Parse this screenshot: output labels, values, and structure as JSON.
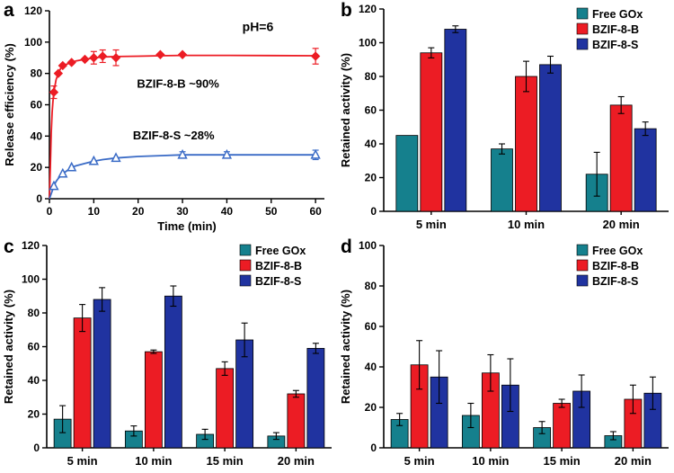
{
  "figure": {
    "background": "#ffffff"
  },
  "panels": [
    {
      "label": "a"
    },
    {
      "label": "b"
    },
    {
      "label": "c"
    },
    {
      "label": "d"
    }
  ],
  "colors": {
    "free_gox": "#15808d",
    "bzif8b": "#ec1c24",
    "bzif8s": "#2033a0",
    "axis": "#000000"
  },
  "chart_data": [
    {
      "panel": "a",
      "type": "line",
      "xlabel": "Time (min)",
      "ylabel": "Release efficiency (%)",
      "xlim": [
        0,
        62
      ],
      "ylim": [
        0,
        120
      ],
      "xticks": [
        0,
        10,
        20,
        30,
        40,
        50,
        60
      ],
      "yticks": [
        0,
        20,
        40,
        60,
        80,
        100,
        120
      ],
      "annotations": [
        {
          "text": "pH=6",
          "x": 47,
          "y": 107,
          "size": "large"
        },
        {
          "text": "BZIF-8-B  ~90%",
          "x": 29,
          "y": 71,
          "size": "normal"
        },
        {
          "text": "BZIF-8-S  ~28%",
          "x": 28,
          "y": 38,
          "size": "normal"
        }
      ],
      "series": [
        {
          "name": "BZIF-8-B",
          "color": "#ec1c24",
          "marker": "diamond",
          "curve": [
            [
              0,
              0
            ],
            [
              0.2,
              20
            ],
            [
              0.4,
              42
            ],
            [
              0.6,
              55
            ],
            [
              0.8,
              62
            ],
            [
              1,
              68
            ],
            [
              1.5,
              76
            ],
            [
              2,
              80
            ],
            [
              2.5,
              83
            ],
            [
              3,
              85
            ],
            [
              4,
              86
            ],
            [
              5,
              87
            ],
            [
              6,
              88
            ],
            [
              8,
              89
            ],
            [
              10,
              90
            ],
            [
              12,
              90.5
            ],
            [
              15,
              90.8
            ],
            [
              20,
              91
            ],
            [
              25,
              91.3
            ],
            [
              30,
              91.5
            ],
            [
              40,
              91.5
            ],
            [
              50,
              91.4
            ],
            [
              60,
              91.3
            ]
          ],
          "markers": [
            [
              1,
              68
            ],
            [
              2,
              80
            ],
            [
              3,
              85
            ],
            [
              5,
              87
            ],
            [
              8,
              89
            ],
            [
              10,
              90
            ],
            [
              12,
              91
            ],
            [
              15,
              90
            ],
            [
              25,
              92
            ],
            [
              30,
              92
            ],
            [
              60,
              91
            ]
          ],
          "errors": [
            4,
            0,
            0,
            0,
            0,
            4,
            4,
            5,
            0,
            0,
            5
          ]
        },
        {
          "name": "BZIF-8-S",
          "color": "#3a6bc6",
          "marker": "triangle",
          "curve": [
            [
              0,
              0
            ],
            [
              0.5,
              4
            ],
            [
              1,
              8
            ],
            [
              1.5,
              11
            ],
            [
              2,
              13
            ],
            [
              3,
              16
            ],
            [
              4,
              18
            ],
            [
              5,
              20
            ],
            [
              6,
              21
            ],
            [
              8,
              22.5
            ],
            [
              10,
              24
            ],
            [
              12,
              25
            ],
            [
              15,
              26
            ],
            [
              20,
              27
            ],
            [
              25,
              27.5
            ],
            [
              30,
              28
            ],
            [
              40,
              28
            ],
            [
              50,
              28
            ],
            [
              60,
              28
            ]
          ],
          "markers": [
            [
              1,
              8
            ],
            [
              3,
              16
            ],
            [
              5,
              20
            ],
            [
              10,
              24
            ],
            [
              15,
              26
            ],
            [
              30,
              28
            ],
            [
              40,
              28
            ],
            [
              60,
              28
            ]
          ],
          "errors": [
            0,
            0,
            0,
            0,
            0,
            2,
            2,
            3
          ]
        }
      ]
    },
    {
      "panel": "b",
      "type": "bar",
      "ylabel": "Retained activity (%)",
      "ylim": [
        0,
        120
      ],
      "yticks": [
        0,
        20,
        40,
        60,
        80,
        100,
        120
      ],
      "categories": [
        "5 min",
        "10 min",
        "20 min"
      ],
      "legend_position": "top-right",
      "series": [
        {
          "name": "Free GOx",
          "color": "#15808d",
          "values": [
            45,
            37,
            22
          ],
          "errors": [
            0,
            3,
            13
          ]
        },
        {
          "name": "BZIF-8-B",
          "color": "#ec1c24",
          "values": [
            94,
            80,
            63
          ],
          "errors": [
            3,
            9,
            5
          ]
        },
        {
          "name": "BZIF-8-S",
          "color": "#2033a0",
          "values": [
            108,
            87,
            49
          ],
          "errors": [
            2,
            5,
            4
          ]
        }
      ]
    },
    {
      "panel": "c",
      "type": "bar",
      "ylabel": "Retained activity (%)",
      "ylim": [
        0,
        120
      ],
      "yticks": [
        0,
        20,
        40,
        60,
        80,
        100,
        120
      ],
      "categories": [
        "5 min",
        "10 min",
        "15 min",
        "20 min"
      ],
      "legend_position": "top-right",
      "series": [
        {
          "name": "Free GOx",
          "color": "#15808d",
          "values": [
            17,
            10,
            8,
            7
          ],
          "errors": [
            8,
            3,
            3,
            2
          ]
        },
        {
          "name": "BZIF-8-B",
          "color": "#ec1c24",
          "values": [
            77,
            57,
            47,
            32
          ],
          "errors": [
            8,
            1,
            4,
            2
          ]
        },
        {
          "name": "BZIF-8-S",
          "color": "#2033a0",
          "values": [
            88,
            90,
            64,
            59
          ],
          "errors": [
            7,
            6,
            10,
            3
          ]
        }
      ]
    },
    {
      "panel": "d",
      "type": "bar",
      "ylabel": "Retained activity (%)",
      "ylim": [
        0,
        100
      ],
      "yticks": [
        0,
        20,
        40,
        60,
        80,
        100
      ],
      "categories": [
        "5 min",
        "10 min",
        "15 min",
        "20 min"
      ],
      "legend_position": "top-right",
      "series": [
        {
          "name": "Free GOx",
          "color": "#15808d",
          "values": [
            14,
            16,
            10,
            6
          ],
          "errors": [
            3,
            6,
            3,
            2
          ]
        },
        {
          "name": "BZIF-8-B",
          "color": "#ec1c24",
          "values": [
            41,
            37,
            22,
            24
          ],
          "errors": [
            12,
            9,
            2,
            7
          ]
        },
        {
          "name": "BZIF-8-S",
          "color": "#2033a0",
          "values": [
            35,
            31,
            28,
            27
          ],
          "errors": [
            13,
            13,
            8,
            8
          ]
        }
      ]
    }
  ]
}
